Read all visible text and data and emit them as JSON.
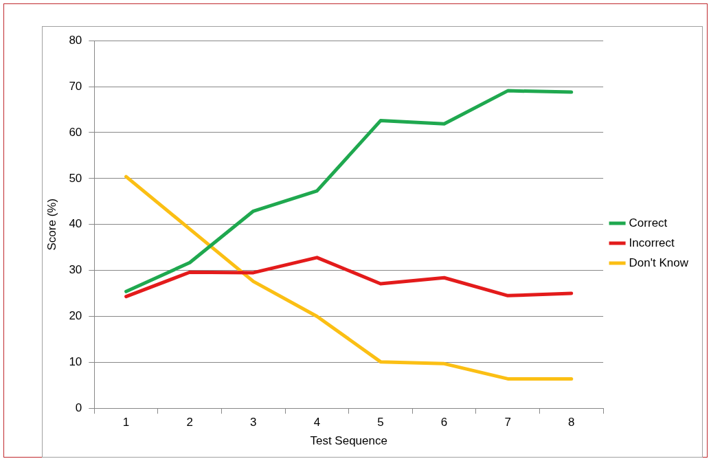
{
  "chart_data": {
    "type": "line",
    "xlabel": "Test Sequence",
    "ylabel": "Score (%)",
    "categories": [
      "1",
      "2",
      "3",
      "4",
      "5",
      "6",
      "7",
      "8"
    ],
    "series": [
      {
        "name": "Correct",
        "color": "#1fa84f",
        "values": [
          25.4,
          31.7,
          42.9,
          47.3,
          62.6,
          61.9,
          69.1,
          68.8
        ]
      },
      {
        "name": "Incorrect",
        "color": "#e31b1b",
        "values": [
          24.3,
          29.6,
          29.5,
          32.8,
          27.1,
          28.4,
          24.5,
          25.0
        ]
      },
      {
        "name": "Don't Know",
        "color": "#fbbf14",
        "values": [
          50.4,
          39.0,
          27.6,
          20.0,
          10.1,
          9.7,
          6.4,
          6.4
        ]
      }
    ],
    "ylim": [
      0,
      80
    ],
    "yticks": [
      0,
      10,
      20,
      30,
      40,
      50,
      60,
      70,
      80
    ],
    "grid": "y",
    "legend": "right",
    "marker": "none",
    "line_style": "solid"
  }
}
